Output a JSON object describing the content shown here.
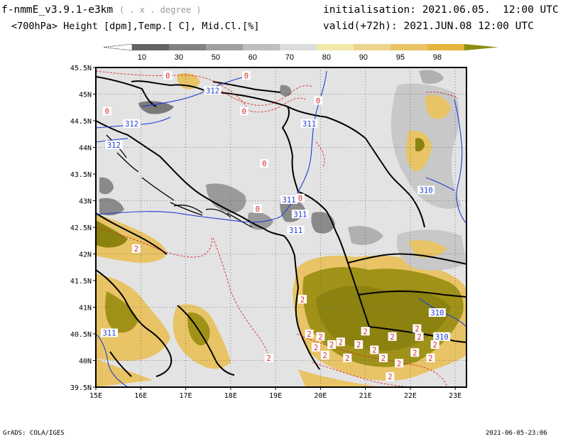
{
  "header": {
    "model": "f-nmmE_v3.9.1-e3km",
    "model_sub": "( . x . degree )",
    "variables": "<700hPa> Height [dpm],Temp.[ C], Mid.Cl.[%]",
    "init_label": "initialisation:",
    "init_value": "2021.06.05.  12:00 UTC",
    "valid_label": "valid(+72h):",
    "valid_value": "2021.JUN.08 12:00 UTC"
  },
  "colorbar": {
    "labels": [
      "10",
      "30",
      "50",
      "60",
      "70",
      "80",
      "90",
      "95",
      "98"
    ],
    "colors": [
      "#646464",
      "#828282",
      "#a0a0a0",
      "#bebebe",
      "#dcdcdc",
      "#f0e8a8",
      "#ecd48c",
      "#e8c466",
      "#e4b43c",
      "#8c8c10"
    ]
  },
  "map": {
    "x_ticks": [
      "15E",
      "16E",
      "17E",
      "18E",
      "19E",
      "20E",
      "21E",
      "22E",
      "23E"
    ],
    "y_ticks": [
      "45.5N",
      "45N",
      "44.5N",
      "44N",
      "43.5N",
      "43N",
      "42.5N",
      "42N",
      "41.5N",
      "41N",
      "40.5N",
      "40N",
      "39.5N"
    ],
    "height_labels": [
      {
        "text": "312",
        "lon": 17.6,
        "lat": 45.07
      },
      {
        "text": "312",
        "lon": 15.8,
        "lat": 44.45
      },
      {
        "text": "312",
        "lon": 15.4,
        "lat": 44.05
      },
      {
        "text": "311",
        "lon": 19.75,
        "lat": 44.45
      },
      {
        "text": "311",
        "lon": 19.3,
        "lat": 43.02
      },
      {
        "text": "311",
        "lon": 19.55,
        "lat": 42.75
      },
      {
        "text": "311",
        "lon": 19.45,
        "lat": 42.45
      },
      {
        "text": "311",
        "lon": 15.3,
        "lat": 40.52
      },
      {
        "text": "310",
        "lon": 22.35,
        "lat": 43.2
      },
      {
        "text": "310",
        "lon": 22.6,
        "lat": 40.9
      },
      {
        "text": "310",
        "lon": 22.7,
        "lat": 40.45
      }
    ],
    "temp_labels": [
      {
        "text": "0",
        "lon": 16.6,
        "lat": 45.35
      },
      {
        "text": "0",
        "lon": 18.35,
        "lat": 45.35
      },
      {
        "text": "0",
        "lon": 15.25,
        "lat": 44.68
      },
      {
        "text": "0",
        "lon": 18.3,
        "lat": 44.68
      },
      {
        "text": "0",
        "lon": 19.95,
        "lat": 44.88
      },
      {
        "text": "0",
        "lon": 18.75,
        "lat": 43.7
      },
      {
        "text": "0",
        "lon": 19.55,
        "lat": 43.05
      },
      {
        "text": "0",
        "lon": 18.6,
        "lat": 42.85
      },
      {
        "text": "2",
        "lon": 15.9,
        "lat": 42.1
      },
      {
        "text": "2",
        "lon": 18.85,
        "lat": 40.05
      },
      {
        "text": "2",
        "lon": 19.6,
        "lat": 41.15
      },
      {
        "text": "2",
        "lon": 19.75,
        "lat": 40.5
      },
      {
        "text": "2",
        "lon": 19.9,
        "lat": 40.25
      },
      {
        "text": "2",
        "lon": 20.0,
        "lat": 40.45
      },
      {
        "text": "2",
        "lon": 20.1,
        "lat": 40.1
      },
      {
        "text": "2",
        "lon": 20.25,
        "lat": 40.3
      },
      {
        "text": "2",
        "lon": 20.45,
        "lat": 40.35
      },
      {
        "text": "2",
        "lon": 20.6,
        "lat": 40.05
      },
      {
        "text": "2",
        "lon": 20.85,
        "lat": 40.3
      },
      {
        "text": "2",
        "lon": 21.0,
        "lat": 40.55
      },
      {
        "text": "2",
        "lon": 21.2,
        "lat": 40.2
      },
      {
        "text": "2",
        "lon": 21.4,
        "lat": 40.05
      },
      {
        "text": "2",
        "lon": 21.6,
        "lat": 40.45
      },
      {
        "text": "2",
        "lon": 21.75,
        "lat": 39.95
      },
      {
        "text": "2",
        "lon": 22.1,
        "lat": 40.15
      },
      {
        "text": "2",
        "lon": 22.2,
        "lat": 40.45
      },
      {
        "text": "2",
        "lon": 22.45,
        "lat": 40.05
      },
      {
        "text": "2",
        "lon": 22.55,
        "lat": 40.3
      },
      {
        "text": "2",
        "lon": 22.15,
        "lat": 40.6
      },
      {
        "text": "2",
        "lon": 21.55,
        "lat": 39.7
      }
    ]
  },
  "footer": {
    "credit": "GrADS: COLA/IGES",
    "timestamp": "2021-06-05-23:06"
  }
}
